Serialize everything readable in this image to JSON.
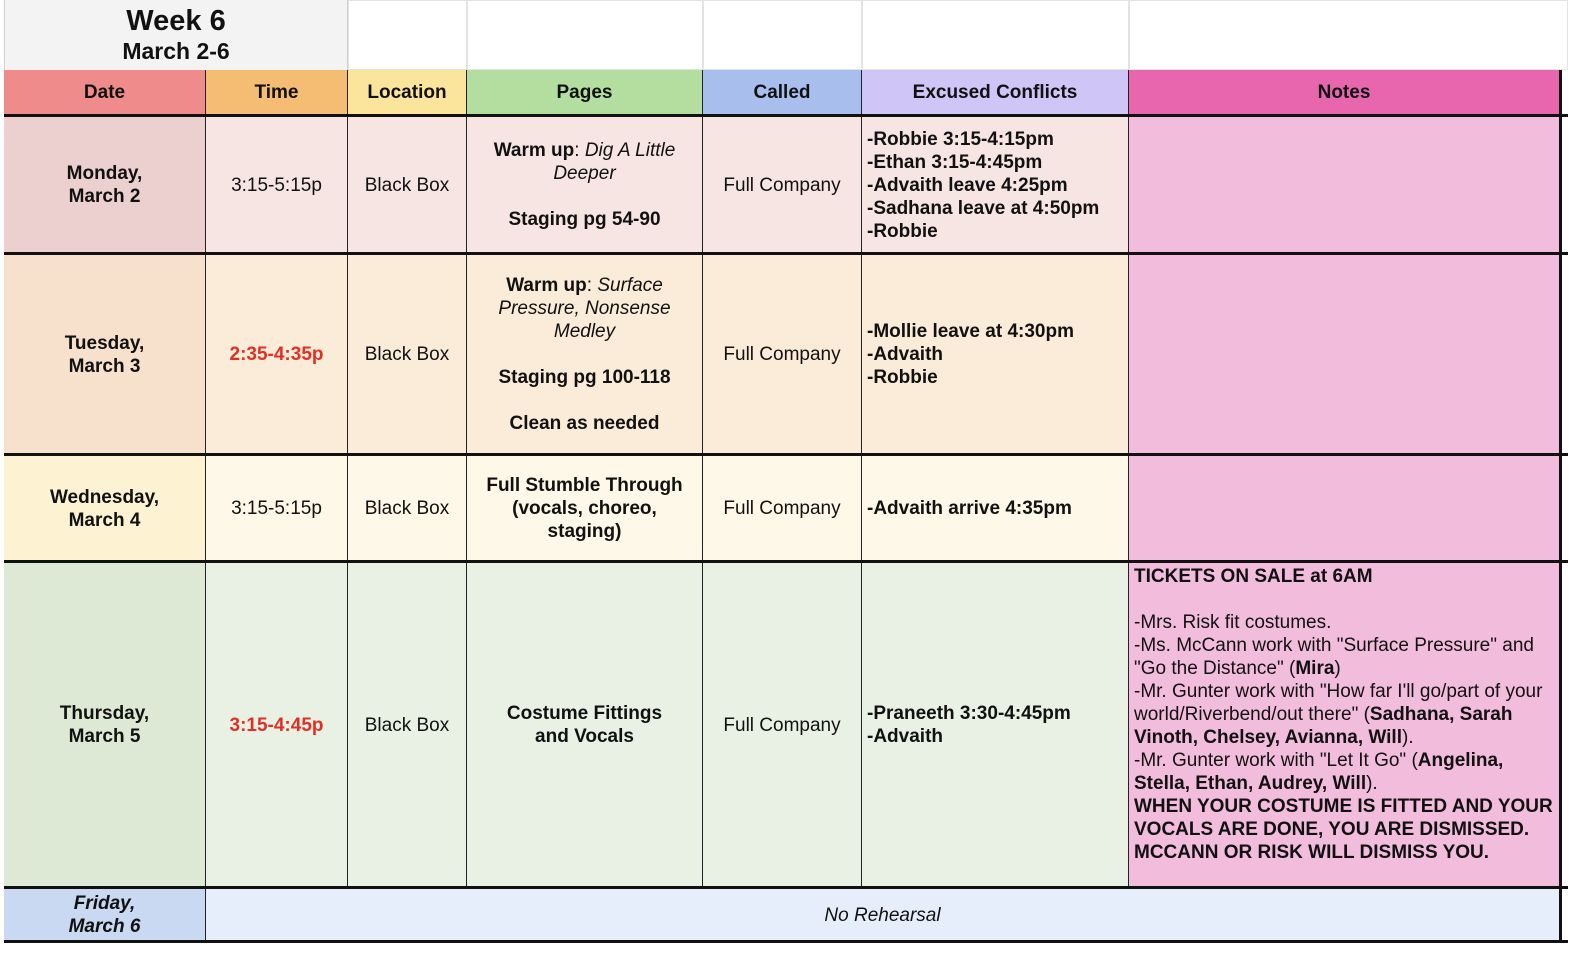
{
  "title": {
    "week": "Week 6",
    "range": "March 2-6"
  },
  "headers": [
    "Date",
    "Time",
    "Location",
    "Pages",
    "Called",
    "Excused Conflicts",
    "Notes"
  ],
  "header_colors": [
    "#ef8b8a",
    "#f5bc74",
    "#fbe59c",
    "#b3dea0",
    "#a8bfee",
    "#cfc5f7",
    "#e866ae"
  ],
  "rows": [
    {
      "date": "Monday,\nMarch 2",
      "time": "3:15-5:15p",
      "location": "Black Box",
      "pages": {
        "warmup_label": "Warm up",
        "warmup_title": "Dig A Little Deeper",
        "items": [
          "Staging pg 54-90"
        ]
      },
      "called": "Full Company",
      "conflicts": [
        "-Robbie 3:15-4:15pm",
        "-Ethan 3:15-4:45pm",
        "-Advaith leave 4:25pm",
        "-Sadhana leave at 4:50pm",
        "-Robbie"
      ],
      "notes": ""
    },
    {
      "date": "Tuesday,\nMarch 3",
      "time": "2:35-4:35p",
      "location": "Black Box",
      "pages": {
        "warmup_label": "Warm up",
        "warmup_title": "Surface Pressure, Nonsense Medley",
        "items": [
          "Staging pg 100-118",
          "Clean as needed"
        ]
      },
      "called": "Full Company",
      "conflicts": [
        "-Mollie leave at 4:30pm",
        "-Advaith",
        "-Robbie"
      ],
      "notes": ""
    },
    {
      "date": "Wednesday,\nMarch 4",
      "time": "3:15-5:15p",
      "location": "Black Box",
      "pages": {
        "line1": "Full Stumble Through",
        "line2": "(vocals, choreo, staging)"
      },
      "called": "Full Company",
      "conflicts": [
        "-Advaith arrive 4:35pm"
      ],
      "notes": ""
    },
    {
      "date": "Thursday,\nMarch 5",
      "time": "3:15-4:45p",
      "location": "Black Box",
      "pages": {
        "line1": "Costume Fittings",
        "line2": "and Vocals"
      },
      "called": "Full Company",
      "conflicts": [
        "-Praneeth 3:30-4:45pm",
        "-Advaith"
      ],
      "notes": {
        "headline": "TICKETS ON SALE at 6AM",
        "n1": "-Mrs. Risk fit costumes.",
        "n2a": "-Ms. McCann work with \"Surface Pressure\" and \"Go the Distance\" (",
        "n2b": "Mira",
        "n2c": ")",
        "n3a": "-Mr. Gunter work with \"How far I'll go/part of your world/Riverbend/out there\" (",
        "n3b": "Sadhana, Sarah Vinoth, Chelsey, Avianna, Will",
        "n3c": ").",
        "n4a": "-Mr. Gunter work with \"Let It Go\" (",
        "n4b": "Angelina, Stella, Ethan, Audrey, Will",
        "n4c": ").",
        "closing": "WHEN YOUR COSTUME IS FITTED AND YOUR VOCALS ARE DONE, YOU ARE DISMISSED. MCCANN OR RISK WILL DISMISS YOU."
      }
    },
    {
      "date": "Friday,\nMarch 6",
      "merged": "No Rehearsal"
    }
  ],
  "colors": {
    "row_mon_date": "#eccfcf",
    "row_mon": "#f7e5e4",
    "row_tue_date": "#f7e1cd",
    "row_tue": "#fbebd9",
    "row_wed_date": "#fdf3d2",
    "row_wed": "#fef8e8",
    "row_thu_date": "#dde9d5",
    "row_thu": "#e9f1e4",
    "row_fri_date": "#c9d9f2",
    "row_fri": "#e6eefb",
    "notes_bg": "#f2bcdd",
    "title_bg": "#f3f3f3",
    "accent_red": "#e03024"
  }
}
